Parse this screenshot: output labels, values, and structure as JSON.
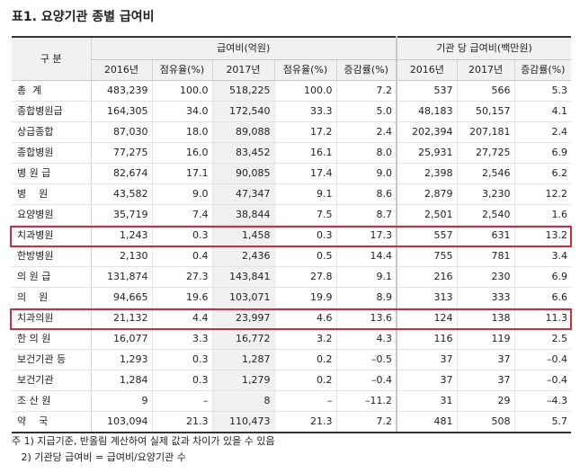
{
  "title": "표1. 요양기관 종별 급여비",
  "header": {
    "category": "구 분",
    "group1": "급여비(억원)",
    "group2": "기관 당 급여비(백만원)",
    "cols": [
      "2016년",
      "점유율(%)",
      "2017년",
      "점유율(%)",
      "증감률(%)",
      "2016년",
      "2017년",
      "증감률(%)"
    ]
  },
  "rows": [
    {
      "label": "총  계",
      "v": [
        "483,239",
        "100.0",
        "518,225",
        "100.0",
        "7.2",
        "537",
        "566",
        "5.3"
      ]
    },
    {
      "label": "종합병원급",
      "v": [
        "164,305",
        "34.0",
        "172,540",
        "33.3",
        "5.0",
        "48,183",
        "50,157",
        "4.1"
      ]
    },
    {
      "label": "상급종합",
      "v": [
        "87,030",
        "18.0",
        "89,088",
        "17.2",
        "2.4",
        "202,394",
        "207,181",
        "2.4"
      ]
    },
    {
      "label": "종합병원",
      "v": [
        "77,275",
        "16.0",
        "83,452",
        "16.1",
        "8.0",
        "25,931",
        "27,725",
        "6.9"
      ]
    },
    {
      "label": "병 원 급",
      "v": [
        "82,674",
        "17.1",
        "90,085",
        "17.4",
        "9.0",
        "2,398",
        "2,546",
        "6.2"
      ]
    },
    {
      "label": "병    원",
      "v": [
        "43,582",
        "9.0",
        "47,347",
        "9.1",
        "8.6",
        "2,879",
        "3,230",
        "12.2"
      ]
    },
    {
      "label": "요양병원",
      "v": [
        "35,719",
        "7.4",
        "38,844",
        "7.5",
        "8.7",
        "2,501",
        "2,540",
        "1.6"
      ]
    },
    {
      "label": "치과병원",
      "v": [
        "1,243",
        "0.3",
        "1,458",
        "0.3",
        "17.3",
        "557",
        "631",
        "13.2"
      ]
    },
    {
      "label": "한방병원",
      "v": [
        "2,130",
        "0.4",
        "2,436",
        "0.5",
        "14.4",
        "755",
        "781",
        "3.4"
      ]
    },
    {
      "label": "의 원 급",
      "v": [
        "131,874",
        "27.3",
        "143,841",
        "27.8",
        "9.1",
        "216",
        "230",
        "6.9"
      ]
    },
    {
      "label": "의    원",
      "v": [
        "94,665",
        "19.6",
        "103,071",
        "19.9",
        "8.9",
        "313",
        "333",
        "6.6"
      ]
    },
    {
      "label": "치과의원",
      "v": [
        "21,132",
        "4.4",
        "23,997",
        "4.6",
        "13.6",
        "124",
        "138",
        "11.3"
      ]
    },
    {
      "label": "한 의 원",
      "v": [
        "16,077",
        "3.3",
        "16,772",
        "3.2",
        "4.3",
        "116",
        "119",
        "2.5"
      ]
    },
    {
      "label": "보건기관 등",
      "v": [
        "1,293",
        "0.3",
        "1,287",
        "0.2",
        "–0.5",
        "37",
        "37",
        "–0.4"
      ]
    },
    {
      "label": "보건기관",
      "v": [
        "1,284",
        "0.3",
        "1,279",
        "0.2",
        "–0.4",
        "37",
        "37",
        "–0.4"
      ]
    },
    {
      "label": "조 산 원",
      "v": [
        "9",
        "–",
        "8",
        "–",
        "–11.2",
        "31",
        "29",
        "–4.3"
      ]
    },
    {
      "label": "약    국",
      "v": [
        "103,094",
        "21.3",
        "110,473",
        "21.3",
        "7.2",
        "481",
        "508",
        "5.7"
      ]
    }
  ],
  "notes": [
    "주 1) 지급기준, 반올림 계산하여 실제 값과 차이가 있을 수 있음",
    "   2) 기관당 급여비 = 급여비/요양기관 수"
  ],
  "highlight_color": "#d42a3b"
}
